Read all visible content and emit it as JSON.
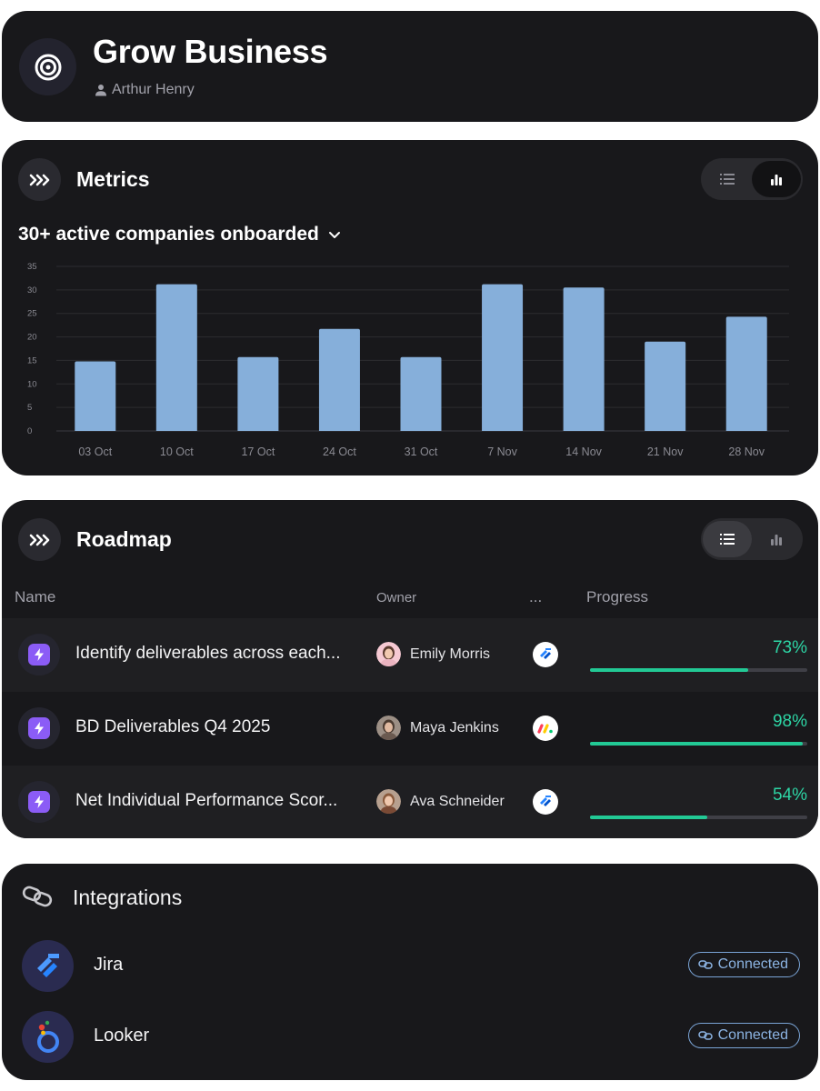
{
  "header": {
    "title": "Grow Business",
    "owner": "Arthur Henry"
  },
  "metrics": {
    "title": "Metrics",
    "headline": "30+ active companies onboarded",
    "colors": {
      "bar": "#86afda",
      "grid": "#2c2c30",
      "tick": "#8a8a92"
    }
  },
  "chart_data": {
    "type": "bar",
    "categories": [
      "03 Oct",
      "10 Oct",
      "17 Oct",
      "24 Oct",
      "31 Oct",
      "7 Nov",
      "14 Nov",
      "21 Nov",
      "28 Nov"
    ],
    "values": [
      14.8,
      31.2,
      15.7,
      21.7,
      15.7,
      31.2,
      30.5,
      19.0,
      24.3
    ],
    "yticks": [
      0,
      5,
      10,
      15,
      20,
      25,
      30,
      35
    ],
    "ylim": [
      0,
      35
    ],
    "title": "30+ active companies onboarded",
    "xlabel": "",
    "ylabel": "",
    "grid": true
  },
  "roadmap": {
    "title": "Roadmap",
    "columns": {
      "name": "Name",
      "owner": "Owner",
      "tool": "...",
      "progress": "Progress"
    },
    "rows": [
      {
        "name": "Identify deliverables across each...",
        "owner": "Emily Morris",
        "tool": "jira-icon",
        "progress_label": "73%",
        "progress": 0.73
      },
      {
        "name": "BD Deliverables Q4 2025",
        "owner": "Maya Jenkins",
        "tool": "monday-icon",
        "progress_label": "98%",
        "progress": 0.98
      },
      {
        "name": "Net Individual Performance Scor...",
        "owner": "Ava Schneider",
        "tool": "jira-icon",
        "progress_label": "54%",
        "progress": 0.54
      }
    ]
  },
  "integrations": {
    "title": "Integrations",
    "items": [
      {
        "name": "Jira",
        "status": "Connected",
        "icon": "jira-icon"
      },
      {
        "name": "Looker",
        "status": "Connected",
        "icon": "looker-icon"
      }
    ]
  }
}
